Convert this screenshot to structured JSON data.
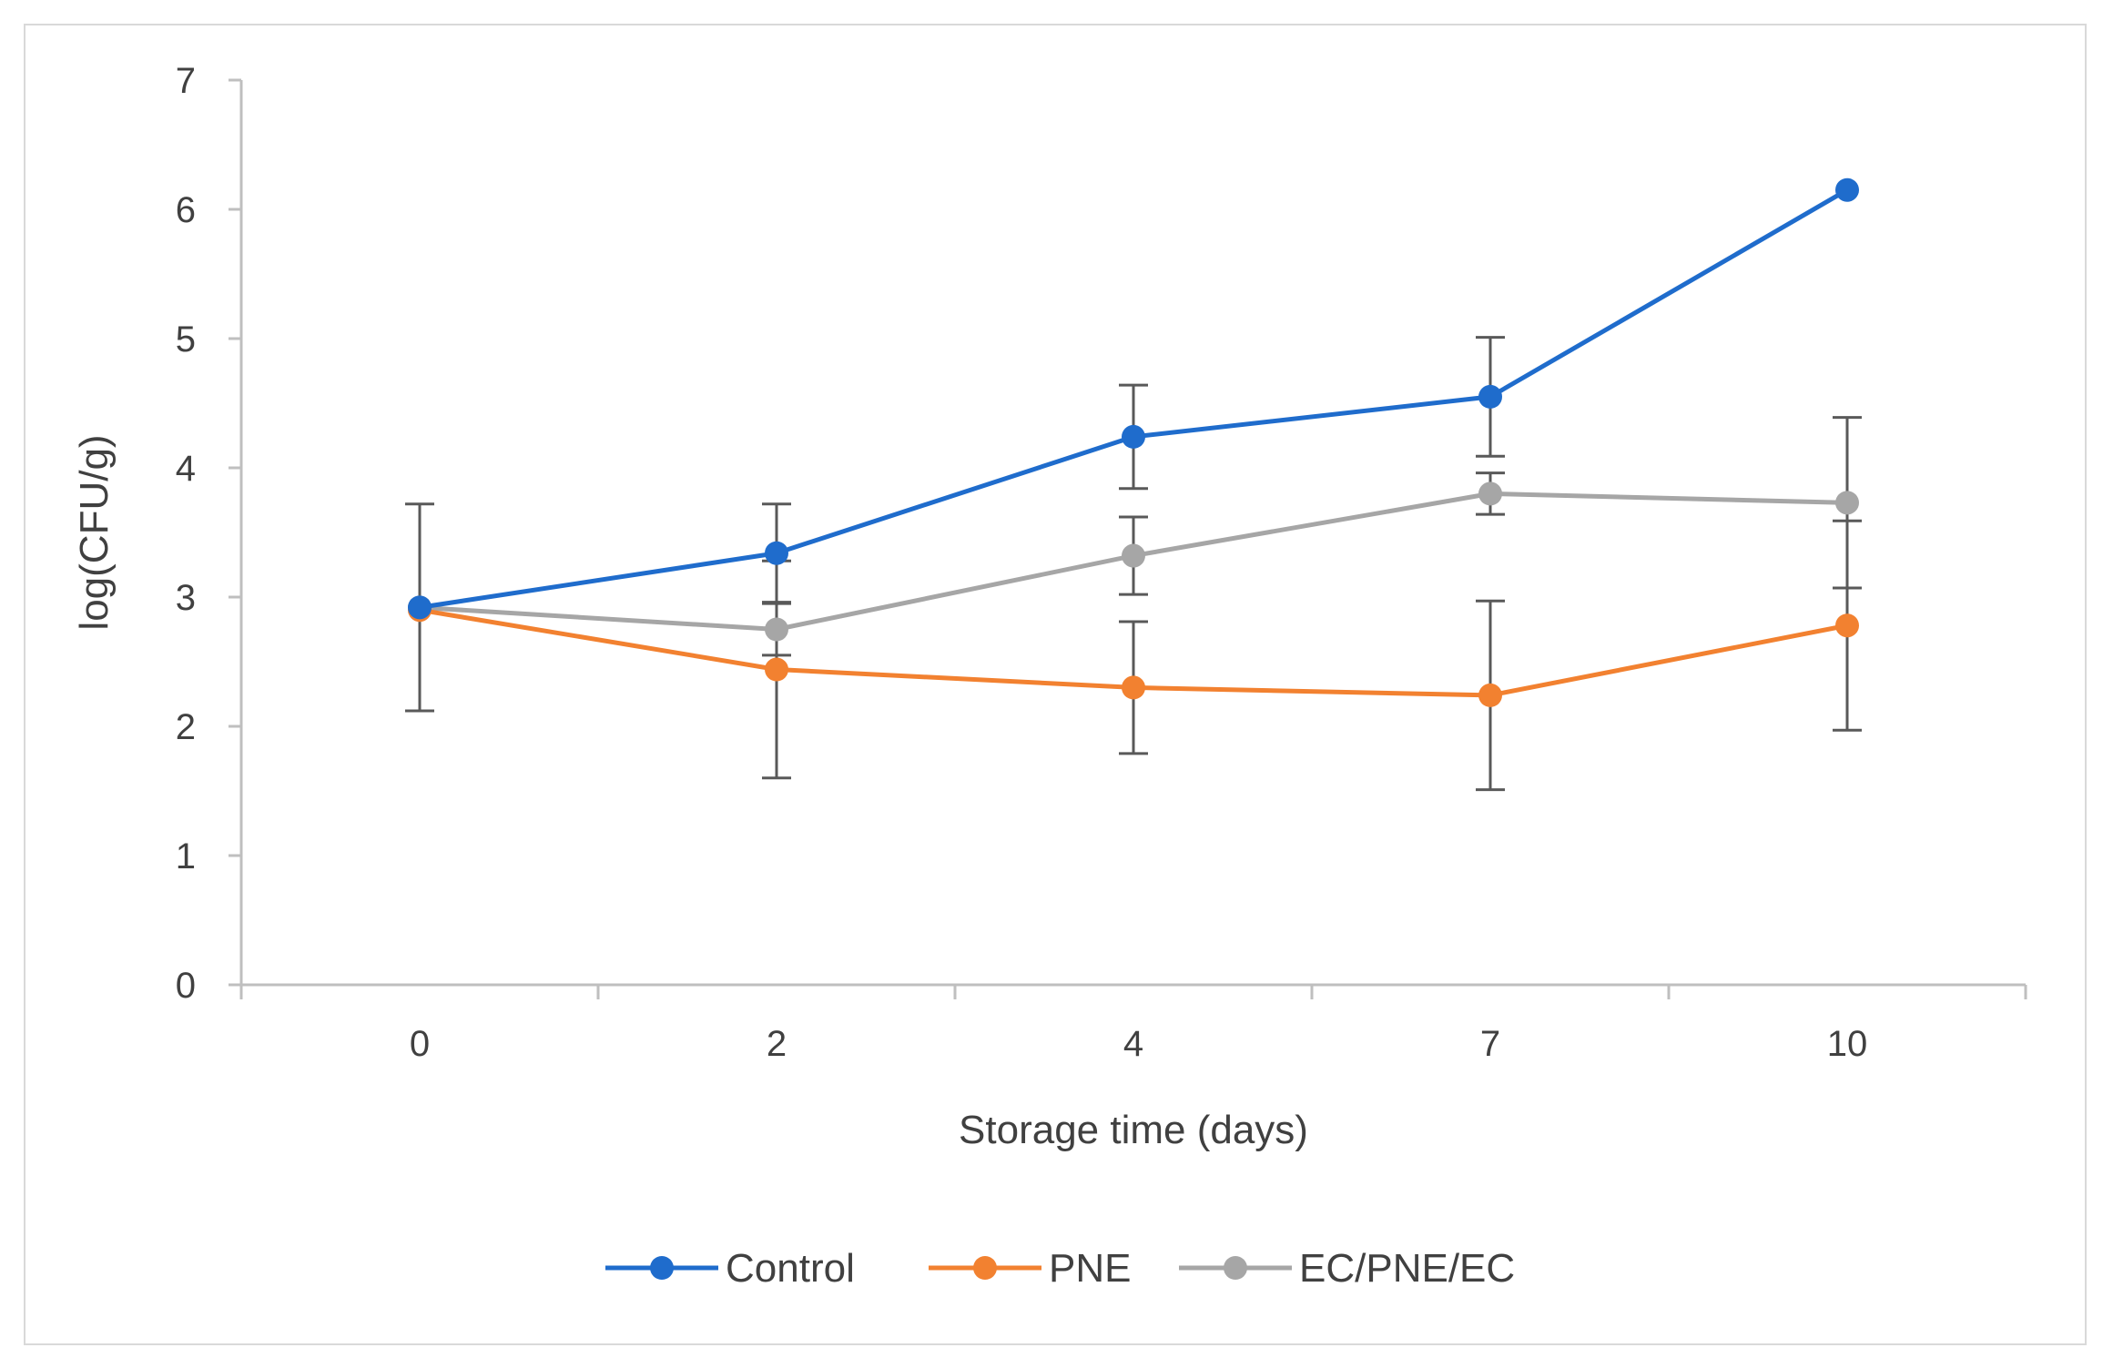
{
  "chart_data": {
    "type": "line",
    "title": "",
    "xlabel": "Storage time (days)",
    "ylabel": "log(CFU/g)",
    "categories": [
      "0",
      "2",
      "4",
      "7",
      "10"
    ],
    "ylim": [
      0,
      7
    ],
    "yticks": [
      "0",
      "1",
      "2",
      "3",
      "4",
      "5",
      "6",
      "7"
    ],
    "grid": false,
    "legend_position": "bottom",
    "series": [
      {
        "name": "Control",
        "color": "#1f6ccc",
        "values": [
          2.92,
          3.34,
          4.24,
          4.55,
          6.15
        ],
        "errors": [
          0.8,
          0.38,
          0.4,
          0.46,
          0.0
        ]
      },
      {
        "name": "PNE",
        "color": "#f28130",
        "values": [
          2.9,
          2.44,
          2.3,
          2.24,
          2.78
        ],
        "errors": [
          0.0,
          0.84,
          0.51,
          0.73,
          0.81
        ]
      },
      {
        "name": "EC/PNE/EC",
        "color": "#a6a6a6",
        "values": [
          2.92,
          2.75,
          3.32,
          3.8,
          3.73
        ],
        "errors": [
          0.0,
          0.2,
          0.3,
          0.16,
          0.66
        ]
      }
    ]
  }
}
